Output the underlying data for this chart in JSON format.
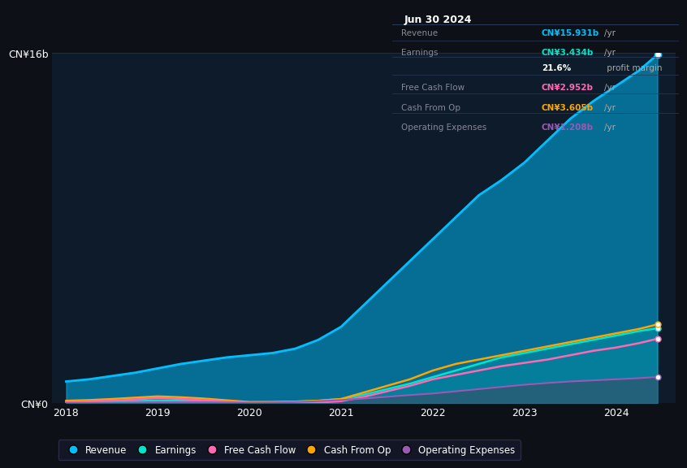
{
  "bg_color": "#0d1117",
  "plot_bg_color": "#0d1b2a",
  "grid_color": "#1e3a5f",
  "title_box": {
    "date": "Jun 30 2024",
    "rows": [
      {
        "label": "Revenue",
        "value": "CN¥15.931b",
        "unit": "/yr",
        "color": "#00bfff"
      },
      {
        "label": "Earnings",
        "value": "CN¥3.434b",
        "unit": "/yr",
        "color": "#00e5cc"
      },
      {
        "label": "",
        "value": "21.6%",
        "unit": " profit margin",
        "color": "#ffffff"
      },
      {
        "label": "Free Cash Flow",
        "value": "CN¥2.952b",
        "unit": "/yr",
        "color": "#ff69b4"
      },
      {
        "label": "Cash From Op",
        "value": "CN¥3.605b",
        "unit": "/yr",
        "color": "#ffa500"
      },
      {
        "label": "Operating Expenses",
        "value": "CN¥1.208b",
        "unit": "/yr",
        "color": "#9b59b6"
      }
    ]
  },
  "years": [
    2018.0,
    2018.25,
    2018.5,
    2018.75,
    2019.0,
    2019.25,
    2019.5,
    2019.75,
    2020.0,
    2020.25,
    2020.5,
    2020.75,
    2021.0,
    2021.25,
    2021.5,
    2021.75,
    2022.0,
    2022.25,
    2022.5,
    2022.75,
    2023.0,
    2023.25,
    2023.5,
    2023.75,
    2024.0,
    2024.25,
    2024.45
  ],
  "revenue": [
    1.0,
    1.1,
    1.25,
    1.4,
    1.6,
    1.8,
    1.95,
    2.1,
    2.2,
    2.3,
    2.5,
    2.9,
    3.5,
    4.5,
    5.5,
    6.5,
    7.5,
    8.5,
    9.5,
    10.2,
    11.0,
    12.0,
    13.0,
    13.8,
    14.5,
    15.2,
    15.931
  ],
  "earnings": [
    0.04,
    0.05,
    0.07,
    0.1,
    0.14,
    0.12,
    0.1,
    0.07,
    0.05,
    0.06,
    0.08,
    0.12,
    0.2,
    0.4,
    0.65,
    0.9,
    1.2,
    1.5,
    1.8,
    2.1,
    2.3,
    2.5,
    2.7,
    2.9,
    3.1,
    3.3,
    3.434
  ],
  "free_cash_flow": [
    0.06,
    0.09,
    0.12,
    0.18,
    0.25,
    0.2,
    0.15,
    0.08,
    0.02,
    0.01,
    0.02,
    0.04,
    0.1,
    0.3,
    0.55,
    0.8,
    1.1,
    1.3,
    1.5,
    1.7,
    1.85,
    2.0,
    2.2,
    2.4,
    2.55,
    2.75,
    2.952
  ],
  "cash_from_op": [
    0.12,
    0.15,
    0.2,
    0.26,
    0.32,
    0.28,
    0.22,
    0.14,
    0.06,
    0.06,
    0.08,
    0.12,
    0.2,
    0.5,
    0.8,
    1.1,
    1.5,
    1.8,
    2.0,
    2.2,
    2.4,
    2.6,
    2.8,
    3.0,
    3.2,
    3.4,
    3.605
  ],
  "op_expenses": [
    0.02,
    0.02,
    0.03,
    0.04,
    0.05,
    0.05,
    0.05,
    0.04,
    0.03,
    0.04,
    0.06,
    0.1,
    0.15,
    0.22,
    0.3,
    0.38,
    0.45,
    0.55,
    0.65,
    0.75,
    0.85,
    0.93,
    1.0,
    1.05,
    1.1,
    1.15,
    1.208
  ],
  "ylim": [
    0,
    16
  ],
  "yticks": [
    0,
    16
  ],
  "ytick_labels": [
    "CN¥0",
    "CN¥16b"
  ],
  "xtick_labels": [
    "2018",
    "2019",
    "2020",
    "2021",
    "2022",
    "2023",
    "2024"
  ],
  "xtick_positions": [
    2018,
    2019,
    2020,
    2021,
    2022,
    2023,
    2024
  ],
  "legend_labels": [
    "Revenue",
    "Earnings",
    "Free Cash Flow",
    "Cash From Op",
    "Operating Expenses"
  ],
  "legend_colors": [
    "#00bfff",
    "#00e5cc",
    "#ff69b4",
    "#ffa500",
    "#9b59b6"
  ],
  "revenue_color": "#00bfff",
  "earnings_color": "#00e5cc",
  "fcf_color": "#ff69b4",
  "cashop_color": "#ffa500",
  "opex_color": "#9b59b6"
}
